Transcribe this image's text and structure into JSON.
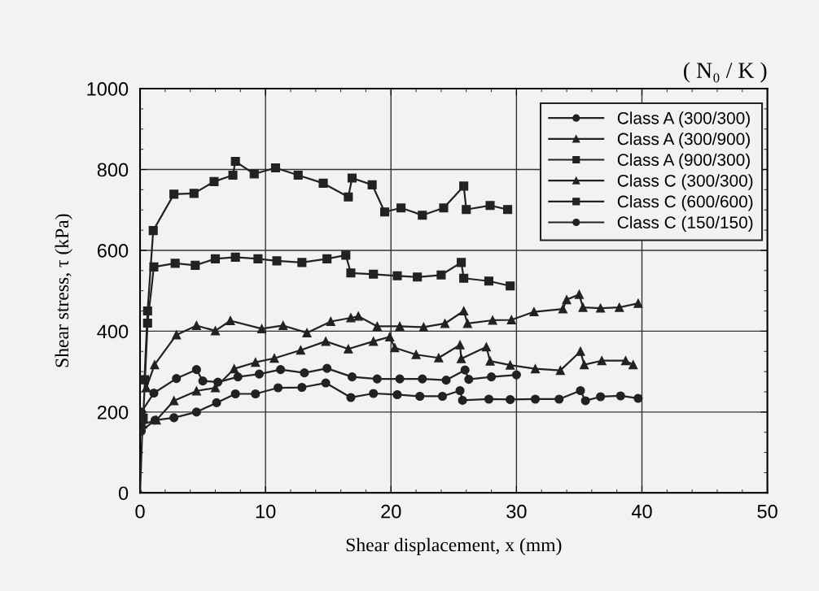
{
  "chart_data": {
    "type": "line",
    "xlabel": "Shear displacement, x (mm)",
    "ylabel": "Shear stress, τ (kPa)",
    "xlim": [
      0,
      50
    ],
    "ylim": [
      0,
      1000
    ],
    "xticks": [
      0,
      10,
      20,
      30,
      40,
      50
    ],
    "yticks": [
      0,
      200,
      400,
      600,
      800,
      1000
    ],
    "grid": true,
    "legend": "top right",
    "annotations": [
      "( N₀ / K )"
    ],
    "series": [
      {
        "name": "Class A (300/300)",
        "color": "#222222",
        "marker": "circle",
        "x": [
          0.1,
          1.2,
          2.7,
          4.5,
          6.1,
          7.6,
          9.2,
          11.0,
          12.9,
          14.8,
          16.8,
          18.6,
          20.5,
          22.3,
          24.1,
          25.5,
          25.7,
          27.8,
          29.5,
          31.5,
          33.4,
          35.1,
          35.5,
          36.7,
          38.3,
          39.7
        ],
        "values": [
          153,
          180,
          186,
          200,
          223,
          245,
          245,
          260,
          261,
          272,
          236,
          246,
          243,
          239,
          239,
          253,
          229,
          232,
          231,
          232,
          232,
          253,
          228,
          238,
          240,
          234
        ]
      },
      {
        "name": "Class A (300/900)",
        "color": "#222222",
        "marker": "triangle",
        "x": [
          0,
          0.2,
          1.3,
          2.7,
          4.5,
          6.0,
          7.5,
          9.2,
          10.7,
          12.8,
          14.8,
          16.6,
          18.6,
          19.9,
          20.3,
          22.0,
          23.8,
          25.5,
          25.6,
          27.6,
          27.9,
          29.5,
          31.5,
          33.5,
          35.1,
          35.4,
          36.8,
          38.7,
          39.3
        ],
        "values": [
          0,
          170,
          180,
          228,
          252,
          260,
          307,
          323,
          333,
          353,
          375,
          356,
          375,
          386,
          359,
          342,
          334,
          366,
          332,
          361,
          326,
          316,
          307,
          303,
          350,
          317,
          327,
          327,
          317
        ]
      },
      {
        "name": "Class A (900/300)",
        "color": "#222222",
        "marker": "square",
        "x": [
          0.25,
          0.6,
          1.1,
          2.8,
          4.4,
          6.0,
          7.6,
          9.4,
          10.9,
          12.9,
          14.9,
          16.4,
          16.8,
          18.6,
          20.5,
          22.1,
          24.0,
          25.6,
          25.8,
          27.8,
          29.5
        ],
        "values": [
          185,
          420,
          559,
          568,
          563,
          579,
          583,
          579,
          574,
          570,
          579,
          588,
          544,
          541,
          537,
          534,
          539,
          570,
          531,
          524,
          512
        ]
      },
      {
        "name": "Class C (300/300)",
        "color": "#222222",
        "marker": "triangle",
        "x": [
          0.5,
          1.16,
          2.9,
          4.5,
          6.0,
          7.2,
          9.7,
          11.4,
          13.3,
          15.2,
          16.8,
          17.4,
          18.9,
          20.7,
          22.6,
          24.3,
          25.8,
          26.1,
          28.1,
          29.6,
          31.4,
          33.7,
          34.0,
          35.0,
          35.3,
          36.7,
          38.2,
          39.7
        ],
        "values": [
          260,
          317,
          391,
          414,
          401,
          426,
          406,
          414,
          396,
          424,
          433,
          437,
          412,
          412,
          410,
          419,
          450,
          419,
          427,
          428,
          448,
          455,
          478,
          491,
          459,
          457,
          459,
          469
        ]
      },
      {
        "name": "Class C (600/600)",
        "color": "#222222",
        "marker": "square",
        "x": [
          0.35,
          0.6,
          1.05,
          2.7,
          4.3,
          5.9,
          7.4,
          7.6,
          9.1,
          10.8,
          12.6,
          14.6,
          16.6,
          16.9,
          18.5,
          19.5,
          20.8,
          22.5,
          24.2,
          25.8,
          26.0,
          27.9,
          29.3
        ],
        "values": [
          280,
          450,
          649,
          739,
          741,
          770,
          786,
          820,
          789,
          804,
          786,
          766,
          732,
          779,
          762,
          695,
          705,
          687,
          705,
          759,
          701,
          711,
          701
        ]
      },
      {
        "name": "Class C (150/150)",
        "color": "#222222",
        "marker": "circle",
        "x": [
          0.1,
          1.1,
          2.9,
          4.5,
          5.0,
          6.2,
          7.8,
          9.5,
          11.2,
          13.1,
          14.9,
          16.9,
          18.9,
          20.7,
          22.5,
          24.4,
          25.9,
          26.2,
          28.0,
          30.0
        ],
        "values": [
          200,
          247,
          283,
          305,
          277,
          274,
          287,
          294,
          305,
          297,
          308,
          287,
          282,
          282,
          282,
          279,
          304,
          281,
          287,
          292
        ]
      }
    ]
  }
}
